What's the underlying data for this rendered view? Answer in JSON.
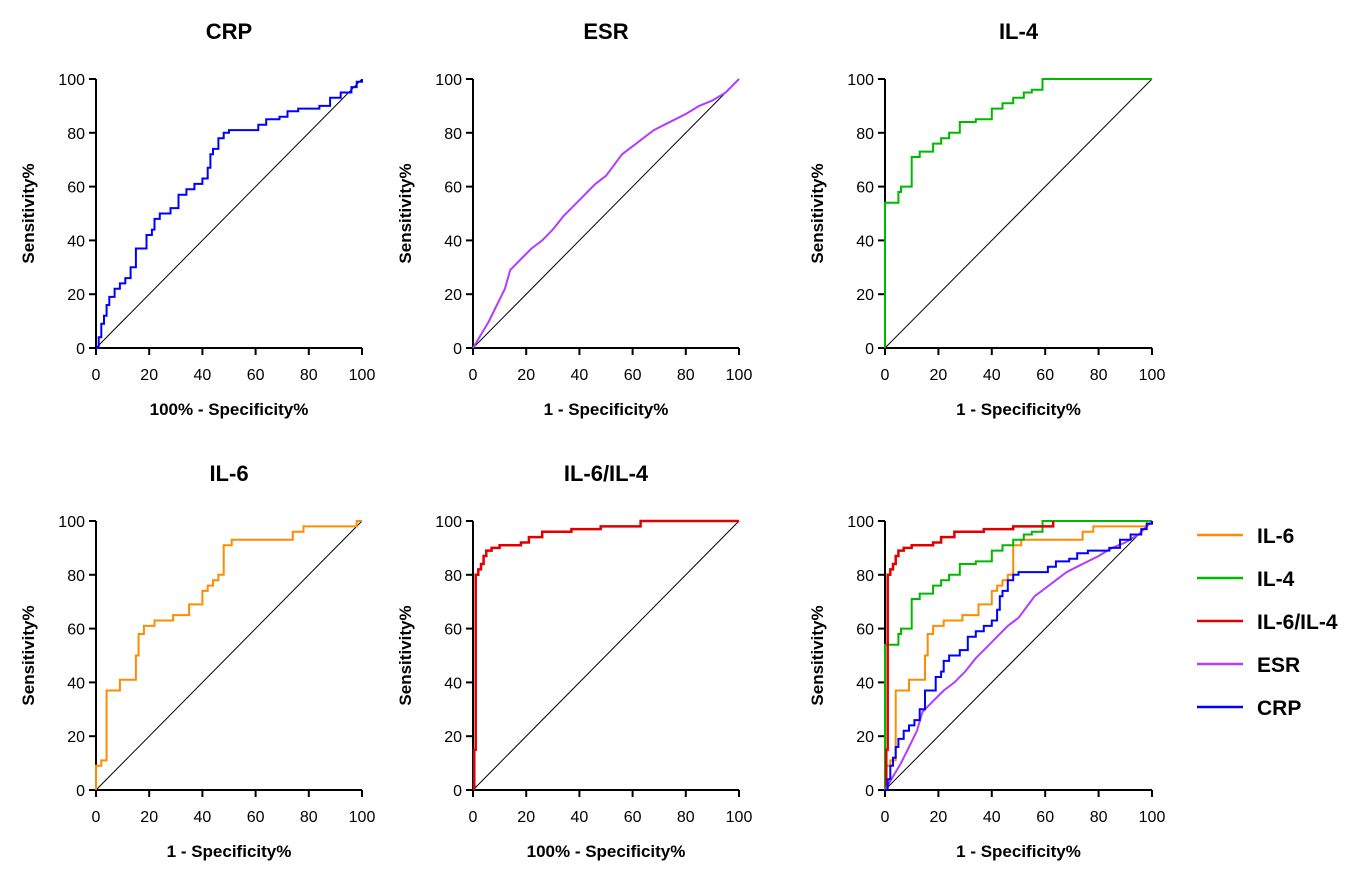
{
  "colors": {
    "CRP": "#0000ff",
    "ESR": "#b23cff",
    "IL-4": "#00b800",
    "IL-6": "#ff8c00",
    "IL-6/IL-4": "#e00000",
    "reference": "#000000"
  },
  "legend": {
    "position": "right",
    "entries": [
      "IL-6",
      "IL-4",
      "IL-6/IL-4",
      "ESR",
      "CRP"
    ]
  },
  "chart_data": [
    {
      "type": "line",
      "title": "CRP",
      "xlabel": "100% - Specificity%",
      "ylabel": "Sensitivity%",
      "xlim": [
        0,
        100
      ],
      "ylim": [
        0,
        100
      ],
      "xticks": [
        "0",
        "20",
        "40",
        "60",
        "80",
        "100"
      ],
      "yticks": [
        "0",
        "20",
        "40",
        "60",
        "80",
        "100"
      ],
      "series": [
        {
          "name": "CRP",
          "step": true,
          "x": [
            0,
            1,
            2,
            3,
            4,
            5,
            7,
            9,
            11,
            13,
            15,
            17,
            19,
            21,
            22,
            24,
            28,
            31,
            34,
            37,
            40,
            42,
            43,
            44,
            46,
            48,
            50,
            52,
            58,
            61,
            64,
            69,
            72,
            76,
            80,
            84,
            88,
            92,
            96,
            98,
            100
          ],
          "y": [
            0,
            4,
            9,
            12,
            16,
            19,
            22,
            24,
            26,
            30,
            37,
            37,
            42,
            44,
            48,
            50,
            52,
            57,
            59,
            61,
            63,
            67,
            72,
            74,
            78,
            80,
            81,
            81,
            81,
            83,
            85,
            86,
            88,
            89,
            89,
            90,
            93,
            95,
            97,
            99,
            100
          ]
        }
      ]
    },
    {
      "type": "line",
      "title": "ESR",
      "xlabel": "1 - Specificity%",
      "ylabel": "Sensitivity%",
      "xlim": [
        0,
        100
      ],
      "ylim": [
        0,
        100
      ],
      "xticks": [
        "0",
        "20",
        "40",
        "60",
        "80",
        "100"
      ],
      "yticks": [
        "0",
        "20",
        "40",
        "60",
        "80",
        "100"
      ],
      "series": [
        {
          "name": "ESR",
          "step": false,
          "x": [
            0,
            3,
            6,
            9,
            12,
            14,
            16,
            19,
            22,
            26,
            30,
            34,
            38,
            42,
            46,
            50,
            53,
            56,
            60,
            64,
            68,
            72,
            76,
            80,
            85,
            90,
            95,
            100
          ],
          "y": [
            0,
            5,
            10,
            16,
            22,
            29,
            31,
            34,
            37,
            40,
            44,
            49,
            53,
            57,
            61,
            64,
            68,
            72,
            75,
            78,
            81,
            83,
            85,
            87,
            90,
            92,
            95,
            100
          ]
        }
      ]
    },
    {
      "type": "line",
      "title": "IL-4",
      "xlabel": "1 - Specificity%",
      "ylabel": "Sensitivity%",
      "xlim": [
        0,
        100
      ],
      "ylim": [
        0,
        100
      ],
      "xticks": [
        "0",
        "20",
        "40",
        "60",
        "80",
        "100"
      ],
      "yticks": [
        "0",
        "20",
        "40",
        "60",
        "80",
        "100"
      ],
      "series": [
        {
          "name": "IL-4",
          "step": true,
          "x": [
            0,
            4,
            5,
            6,
            10,
            13,
            18,
            21,
            24,
            28,
            34,
            40,
            44,
            48,
            52,
            55,
            59,
            100
          ],
          "y": [
            54,
            54,
            58,
            60,
            71,
            73,
            76,
            78,
            80,
            84,
            85,
            89,
            91,
            93,
            95,
            96,
            100,
            100
          ]
        }
      ]
    },
    {
      "type": "line",
      "title": "IL-6",
      "xlabel": "1 - Specificity%",
      "ylabel": "Sensitivity%",
      "xlim": [
        0,
        100
      ],
      "ylim": [
        0,
        100
      ],
      "xticks": [
        "0",
        "20",
        "40",
        "60",
        "80",
        "100"
      ],
      "yticks": [
        "0",
        "20",
        "40",
        "60",
        "80",
        "100"
      ],
      "series": [
        {
          "name": "IL-6",
          "step": true,
          "x": [
            0,
            2,
            4,
            9,
            11,
            15,
            16,
            18,
            22,
            25,
            29,
            35,
            40,
            42,
            44,
            46,
            48,
            51,
            60,
            74,
            78,
            86,
            98,
            100
          ],
          "y": [
            9,
            11,
            37,
            41,
            41,
            50,
            58,
            61,
            63,
            63,
            65,
            69,
            74,
            76,
            78,
            80,
            91,
            93,
            93,
            96,
            98,
            98,
            100,
            100
          ]
        }
      ]
    },
    {
      "type": "line",
      "title": "IL-6/IL-4",
      "xlabel": "100% - Specificity%",
      "ylabel": "Sensitivity%",
      "xlim": [
        0,
        100
      ],
      "ylim": [
        0,
        100
      ],
      "xticks": [
        "0",
        "20",
        "40",
        "60",
        "80",
        "100"
      ],
      "yticks": [
        "0",
        "20",
        "40",
        "60",
        "80",
        "100"
      ],
      "series": [
        {
          "name": "IL-6/IL-4",
          "step": true,
          "x": [
            0.5,
            1,
            2,
            3,
            4,
            5,
            7,
            10,
            15,
            18,
            21,
            26,
            37,
            48,
            63,
            100
          ],
          "y": [
            15,
            80,
            82,
            84,
            87,
            89,
            90,
            91,
            91,
            92,
            94,
            96,
            97,
            98,
            100,
            100
          ]
        }
      ]
    },
    {
      "type": "line",
      "title": "",
      "xlabel": "1 - Specificity%",
      "ylabel": "Sensitivity%",
      "xlim": [
        0,
        100
      ],
      "ylim": [
        0,
        100
      ],
      "xticks": [
        "0",
        "20",
        "40",
        "60",
        "80",
        "100"
      ],
      "yticks": [
        "0",
        "20",
        "40",
        "60",
        "80",
        "100"
      ],
      "series": [
        {
          "name": "IL-6",
          "step": true,
          "x": [
            0,
            2,
            4,
            9,
            11,
            15,
            16,
            18,
            22,
            25,
            29,
            35,
            40,
            42,
            44,
            46,
            48,
            51,
            60,
            74,
            78,
            86,
            98,
            100
          ],
          "y": [
            9,
            11,
            37,
            41,
            41,
            50,
            58,
            61,
            63,
            63,
            65,
            69,
            74,
            76,
            78,
            80,
            91,
            93,
            93,
            96,
            98,
            98,
            100,
            100
          ]
        },
        {
          "name": "IL-4",
          "step": true,
          "x": [
            0,
            4,
            5,
            6,
            10,
            13,
            18,
            21,
            24,
            28,
            34,
            40,
            44,
            48,
            52,
            55,
            59,
            100
          ],
          "y": [
            54,
            54,
            58,
            60,
            71,
            73,
            76,
            78,
            80,
            84,
            85,
            89,
            91,
            93,
            95,
            96,
            100,
            100
          ]
        },
        {
          "name": "IL-6/IL-4",
          "step": true,
          "x": [
            0.5,
            1,
            2,
            3,
            4,
            5,
            7,
            10,
            15,
            18,
            21,
            26,
            37,
            48,
            63
          ],
          "y": [
            15,
            80,
            82,
            84,
            87,
            89,
            90,
            91,
            91,
            92,
            94,
            96,
            97,
            98,
            100
          ]
        },
        {
          "name": "ESR",
          "step": false,
          "x": [
            0,
            3,
            6,
            9,
            12,
            14,
            16,
            19,
            22,
            26,
            30,
            34,
            38,
            42,
            46,
            50,
            53,
            56,
            60,
            64,
            68,
            72,
            76,
            80,
            85,
            90,
            95,
            100
          ],
          "y": [
            0,
            5,
            10,
            16,
            22,
            29,
            31,
            34,
            37,
            40,
            44,
            49,
            53,
            57,
            61,
            64,
            68,
            72,
            75,
            78,
            81,
            83,
            85,
            87,
            90,
            92,
            95,
            100
          ]
        },
        {
          "name": "CRP",
          "step": true,
          "x": [
            0,
            1,
            2,
            3,
            4,
            5,
            7,
            9,
            11,
            13,
            15,
            17,
            19,
            21,
            22,
            24,
            28,
            31,
            34,
            37,
            40,
            42,
            43,
            44,
            46,
            48,
            50,
            52,
            58,
            61,
            64,
            69,
            72,
            76,
            80,
            84,
            88,
            92,
            96,
            98,
            100
          ],
          "y": [
            0,
            4,
            9,
            12,
            16,
            19,
            22,
            24,
            26,
            30,
            37,
            37,
            42,
            44,
            48,
            50,
            52,
            57,
            59,
            61,
            63,
            67,
            72,
            74,
            78,
            80,
            81,
            81,
            81,
            83,
            85,
            86,
            88,
            89,
            89,
            90,
            93,
            95,
            97,
            99,
            100
          ]
        }
      ]
    }
  ]
}
